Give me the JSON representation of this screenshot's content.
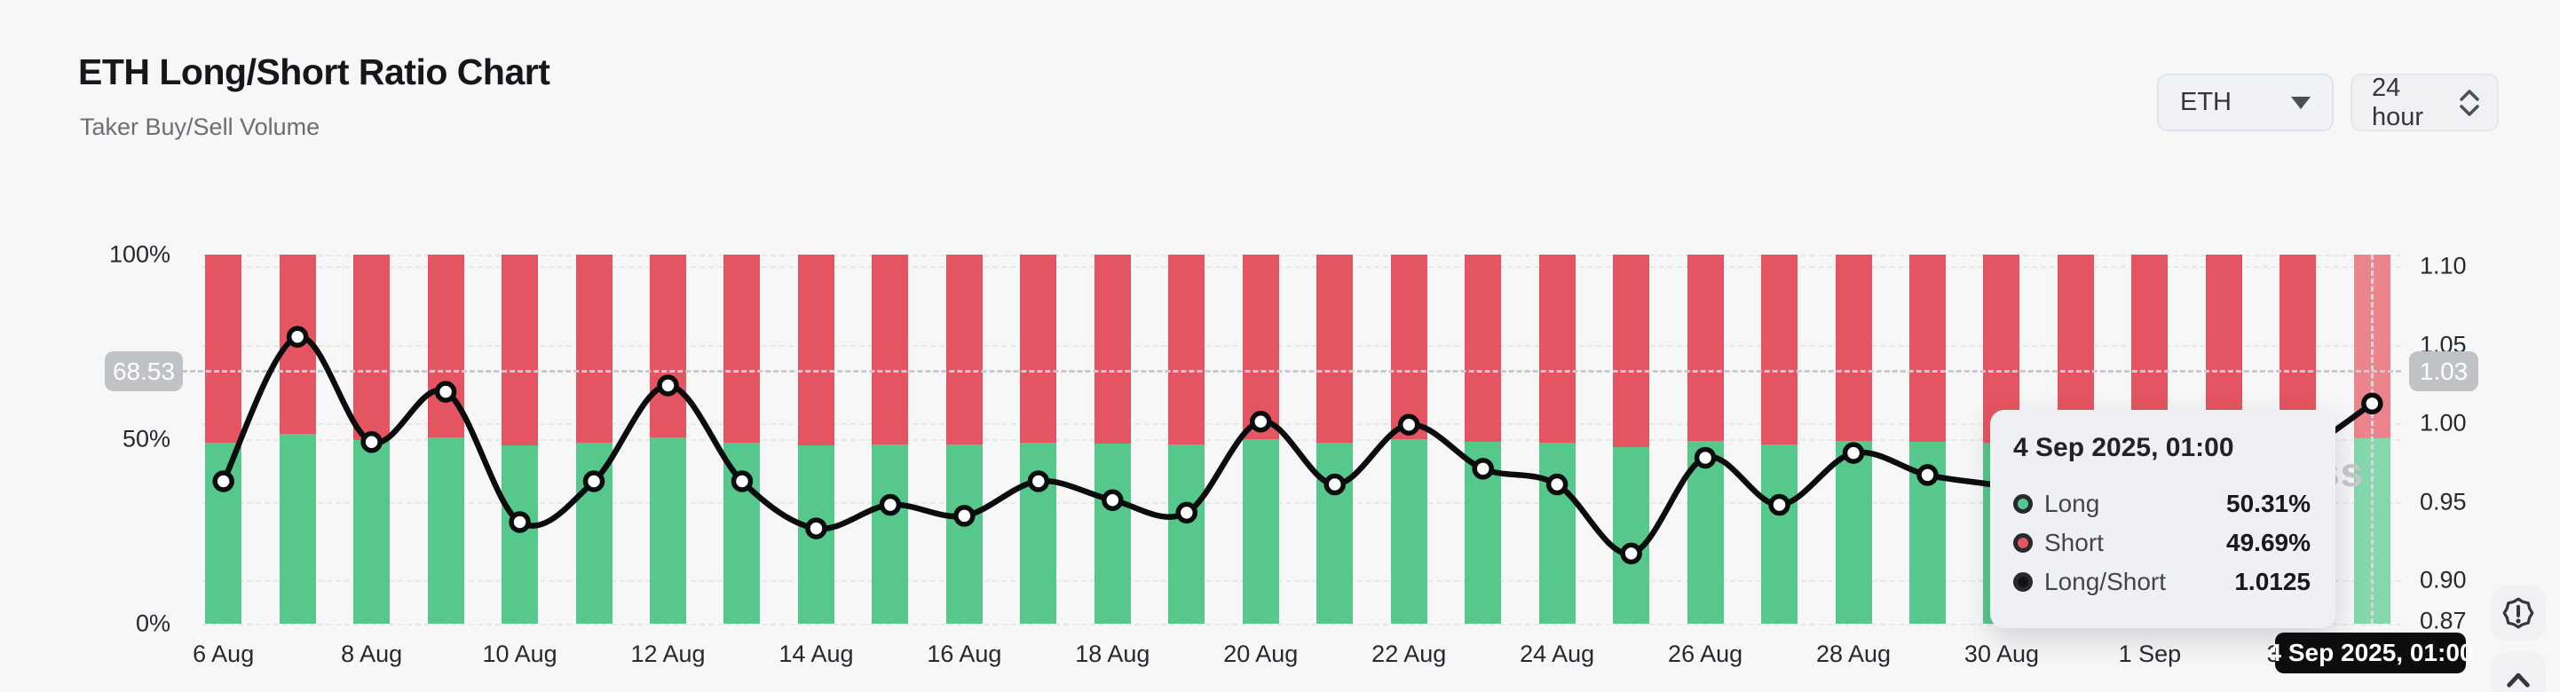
{
  "header": {
    "title": "ETH Long/Short Ratio Chart",
    "subtitle": "Taker Buy/Sell Volume"
  },
  "controls": {
    "symbol": {
      "value": "ETH"
    },
    "interval": {
      "value": "24 hour"
    }
  },
  "chart_data": {
    "type": "bar",
    "subtype": "stacked-percent-bars-with-ratio-line",
    "title": "ETH Long/Short Ratio Chart",
    "series": [
      {
        "name": "Long",
        "unit": "%",
        "color": "#57c88c",
        "render": "bar-bottom"
      },
      {
        "name": "Short",
        "unit": "%",
        "color": "#e45561",
        "render": "bar-top"
      },
      {
        "name": "Long/Short",
        "color": "#0b0c0e",
        "render": "line"
      }
    ],
    "days": [
      {
        "date": "6 Aug",
        "long": 49.06,
        "short": 50.94,
        "ratio": 0.963
      },
      {
        "date": "7 Aug",
        "long": 51.34,
        "short": 48.66,
        "ratio": 1.055
      },
      {
        "date": "8 Aug",
        "long": 49.7,
        "short": 50.3,
        "ratio": 0.988
      },
      {
        "date": "9 Aug",
        "long": 50.5,
        "short": 49.5,
        "ratio": 1.02
      },
      {
        "date": "10 Aug",
        "long": 48.37,
        "short": 51.63,
        "ratio": 0.937
      },
      {
        "date": "11 Aug",
        "long": 49.06,
        "short": 50.94,
        "ratio": 0.963
      },
      {
        "date": "12 Aug",
        "long": 50.59,
        "short": 49.41,
        "ratio": 1.024
      },
      {
        "date": "13 Aug",
        "long": 49.06,
        "short": 50.94,
        "ratio": 0.963
      },
      {
        "date": "14 Aug",
        "long": 48.27,
        "short": 51.73,
        "ratio": 0.933
      },
      {
        "date": "15 Aug",
        "long": 48.67,
        "short": 51.33,
        "ratio": 0.948
      },
      {
        "date": "16 Aug",
        "long": 48.48,
        "short": 51.52,
        "ratio": 0.941
      },
      {
        "date": "17 Aug",
        "long": 49.06,
        "short": 50.94,
        "ratio": 0.963
      },
      {
        "date": "18 Aug",
        "long": 48.74,
        "short": 51.26,
        "ratio": 0.951
      },
      {
        "date": "19 Aug",
        "long": 48.53,
        "short": 51.47,
        "ratio": 0.943
      },
      {
        "date": "20 Aug",
        "long": 50.02,
        "short": 49.98,
        "ratio": 1.001
      },
      {
        "date": "21 Aug",
        "long": 49.01,
        "short": 50.99,
        "ratio": 0.961
      },
      {
        "date": "22 Aug",
        "long": 49.97,
        "short": 50.03,
        "ratio": 0.999
      },
      {
        "date": "23 Aug",
        "long": 49.26,
        "short": 50.74,
        "ratio": 0.971
      },
      {
        "date": "24 Aug",
        "long": 49.01,
        "short": 50.99,
        "ratio": 0.961
      },
      {
        "date": "25 Aug",
        "long": 47.84,
        "short": 52.16,
        "ratio": 0.917
      },
      {
        "date": "26 Aug",
        "long": 49.44,
        "short": 50.56,
        "ratio": 0.978
      },
      {
        "date": "27 Aug",
        "long": 48.67,
        "short": 51.33,
        "ratio": 0.948
      },
      {
        "date": "28 Aug",
        "long": 49.52,
        "short": 50.48,
        "ratio": 0.981
      },
      {
        "date": "29 Aug",
        "long": 49.16,
        "short": 50.84,
        "ratio": 0.967
      },
      {
        "date": "30 Aug",
        "long": 48.98,
        "short": 51.02,
        "ratio": 0.96
      },
      {
        "date": "31 Aug",
        "long": 48.72,
        "short": 51.28,
        "ratio": 0.95
      },
      {
        "date": "1 Sep",
        "long": 49.24,
        "short": 50.76,
        "ratio": 0.97
      },
      {
        "date": "2 Sep",
        "long": 48.98,
        "short": 51.02,
        "ratio": 0.96
      },
      {
        "date": "3 Sep",
        "long": 49.49,
        "short": 50.51,
        "ratio": 0.98
      },
      {
        "date": "4 Sep",
        "long": 50.31,
        "short": 49.69,
        "ratio": 1.0125
      }
    ],
    "left_axis": {
      "ticks": [
        {
          "label": "100%",
          "value": 100
        },
        {
          "label": "50%",
          "value": 50
        },
        {
          "label": "0%",
          "value": 0
        }
      ],
      "min": 0,
      "max": 100
    },
    "right_axis": {
      "ticks": [
        {
          "label": "1.10",
          "value": 1.1
        },
        {
          "label": "1.05",
          "value": 1.05
        },
        {
          "label": "1.00",
          "value": 1.0
        },
        {
          "label": "0.95",
          "value": 0.95
        },
        {
          "label": "0.90",
          "value": 0.9
        },
        {
          "label": "0.87",
          "value": 0.87
        }
      ]
    },
    "x_tick_every": 2,
    "grid": "dashed-horizontal",
    "legend_position": "none",
    "hovered_index": 29
  },
  "crosshair": {
    "left_badge": "68.53",
    "right_badge": "1.03",
    "y_percent": 68.53,
    "x_label": "4 Sep 2025, 01:00"
  },
  "tooltip": {
    "title": "4 Sep 2025, 01:00",
    "rows": [
      {
        "label": "Long",
        "value": "50.31%",
        "color": "#57c88c"
      },
      {
        "label": "Short",
        "value": "49.69%",
        "color": "#e45561"
      },
      {
        "label": "Long/Short",
        "value": "1.0125",
        "color": "#111316"
      }
    ]
  },
  "watermark": {
    "visible_text": "ss"
  },
  "ui_colors": {
    "background": "#f7f7f8",
    "long_green": "#57c88c",
    "short_red": "#e45561",
    "line_black": "#0b0c0e",
    "badge_gray": "#c0c3c6",
    "pill_black": "#0c0d0f"
  }
}
